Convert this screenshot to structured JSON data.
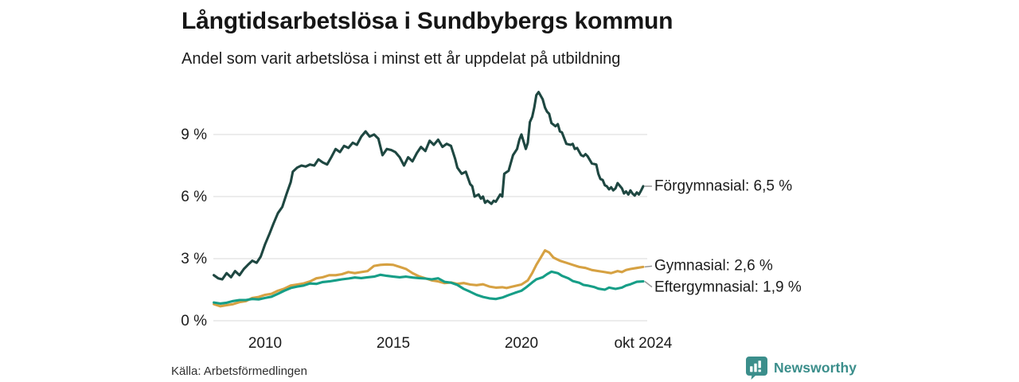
{
  "header": {
    "title": "Långtidsarbetslösa i Sundbybergs kommun",
    "subtitle": "Andel som varit arbetslösa i minst ett år uppdelat på utbildning"
  },
  "footer": {
    "source": "Källa: Arbetsförmedlingen",
    "brand": "Newsworthy",
    "brand_color": "#3b8e8b"
  },
  "chart_data": {
    "type": "line",
    "title": "Långtidsarbetslösa i Sundbybergs kommun",
    "subtitle": "Andel som varit arbetslösa i minst ett år uppdelat på utbildning",
    "grid": "horizontal-only",
    "grid_color": "#e0e0e0",
    "x_range": [
      2008.0,
      2024.75
    ],
    "ylim": [
      0,
      11.6
    ],
    "x_ticks": [
      {
        "label": "2010",
        "year": 2010
      },
      {
        "label": "2015",
        "year": 2015
      },
      {
        "label": "2020",
        "year": 2020
      },
      {
        "label": "okt 2024",
        "year": 2024.75
      }
    ],
    "y_ticks": [
      {
        "label": "0 %",
        "value": 0
      },
      {
        "label": "3 %",
        "value": 3
      },
      {
        "label": "6 %",
        "value": 6
      },
      {
        "label": "9 %",
        "value": 9
      }
    ],
    "legend_position": "right-of-line-ends",
    "connector_color": "#999999",
    "series": [
      {
        "name": "Förgymnasial",
        "end_label": "Förgymnasial: 6,5 %",
        "last_value": "6,5 %",
        "color": "#1e4741",
        "points": [
          [
            2008.0,
            2.2
          ],
          [
            2008.17,
            2.05
          ],
          [
            2008.33,
            2.0
          ],
          [
            2008.5,
            2.3
          ],
          [
            2008.67,
            2.1
          ],
          [
            2008.83,
            2.4
          ],
          [
            2009.0,
            2.2
          ],
          [
            2009.17,
            2.5
          ],
          [
            2009.33,
            2.7
          ],
          [
            2009.5,
            2.9
          ],
          [
            2009.67,
            2.8
          ],
          [
            2009.83,
            3.1
          ],
          [
            2010.0,
            3.7
          ],
          [
            2010.17,
            4.2
          ],
          [
            2010.33,
            4.7
          ],
          [
            2010.5,
            5.2
          ],
          [
            2010.67,
            5.5
          ],
          [
            2010.83,
            6.1
          ],
          [
            2011.0,
            6.7
          ],
          [
            2011.08,
            7.2
          ],
          [
            2011.25,
            7.4
          ],
          [
            2011.42,
            7.5
          ],
          [
            2011.58,
            7.45
          ],
          [
            2011.75,
            7.55
          ],
          [
            2011.92,
            7.5
          ],
          [
            2012.08,
            7.8
          ],
          [
            2012.25,
            7.65
          ],
          [
            2012.42,
            7.55
          ],
          [
            2012.58,
            7.9
          ],
          [
            2012.75,
            8.3
          ],
          [
            2012.92,
            8.15
          ],
          [
            2013.08,
            8.45
          ],
          [
            2013.25,
            8.35
          ],
          [
            2013.42,
            8.6
          ],
          [
            2013.58,
            8.5
          ],
          [
            2013.75,
            8.9
          ],
          [
            2013.92,
            9.15
          ],
          [
            2014.08,
            8.9
          ],
          [
            2014.25,
            9.0
          ],
          [
            2014.42,
            8.8
          ],
          [
            2014.58,
            8.0
          ],
          [
            2014.75,
            8.3
          ],
          [
            2014.92,
            8.25
          ],
          [
            2015.08,
            8.15
          ],
          [
            2015.25,
            7.9
          ],
          [
            2015.42,
            7.5
          ],
          [
            2015.58,
            7.9
          ],
          [
            2015.75,
            7.7
          ],
          [
            2015.92,
            8.1
          ],
          [
            2016.08,
            8.4
          ],
          [
            2016.25,
            8.2
          ],
          [
            2016.42,
            8.7
          ],
          [
            2016.58,
            8.5
          ],
          [
            2016.75,
            8.75
          ],
          [
            2016.92,
            8.4
          ],
          [
            2017.08,
            8.55
          ],
          [
            2017.25,
            8.45
          ],
          [
            2017.42,
            7.8
          ],
          [
            2017.5,
            7.4
          ],
          [
            2017.67,
            7.1
          ],
          [
            2017.83,
            7.2
          ],
          [
            2018.0,
            6.6
          ],
          [
            2018.08,
            6.5
          ],
          [
            2018.17,
            6.0
          ],
          [
            2018.33,
            6.1
          ],
          [
            2018.42,
            5.9
          ],
          [
            2018.5,
            6.0
          ],
          [
            2018.58,
            5.7
          ],
          [
            2018.67,
            5.8
          ],
          [
            2018.83,
            5.65
          ],
          [
            2018.92,
            5.8
          ],
          [
            2019.0,
            5.75
          ],
          [
            2019.17,
            6.1
          ],
          [
            2019.25,
            6.0
          ],
          [
            2019.33,
            7.1
          ],
          [
            2019.5,
            7.25
          ],
          [
            2019.67,
            8.0
          ],
          [
            2019.83,
            8.3
          ],
          [
            2019.92,
            8.75
          ],
          [
            2020.0,
            9.0
          ],
          [
            2020.17,
            8.3
          ],
          [
            2020.25,
            8.6
          ],
          [
            2020.33,
            9.6
          ],
          [
            2020.42,
            9.85
          ],
          [
            2020.5,
            10.3
          ],
          [
            2020.58,
            10.9
          ],
          [
            2020.67,
            11.05
          ],
          [
            2020.83,
            10.7
          ],
          [
            2020.92,
            10.3
          ],
          [
            2021.0,
            10.1
          ],
          [
            2021.08,
            10.0
          ],
          [
            2021.17,
            9.55
          ],
          [
            2021.33,
            9.4
          ],
          [
            2021.42,
            9.5
          ],
          [
            2021.5,
            9.15
          ],
          [
            2021.58,
            9.1
          ],
          [
            2021.75,
            8.55
          ],
          [
            2021.92,
            8.5
          ],
          [
            2022.0,
            8.55
          ],
          [
            2022.08,
            8.3
          ],
          [
            2022.17,
            8.35
          ],
          [
            2022.33,
            8.0
          ],
          [
            2022.42,
            7.95
          ],
          [
            2022.5,
            8.05
          ],
          [
            2022.58,
            7.95
          ],
          [
            2022.75,
            7.6
          ],
          [
            2022.92,
            7.55
          ],
          [
            2023.0,
            7.1
          ],
          [
            2023.08,
            6.85
          ],
          [
            2023.17,
            6.8
          ],
          [
            2023.25,
            6.55
          ],
          [
            2023.33,
            6.5
          ],
          [
            2023.42,
            6.35
          ],
          [
            2023.5,
            6.45
          ],
          [
            2023.58,
            6.3
          ],
          [
            2023.67,
            6.4
          ],
          [
            2023.75,
            6.65
          ],
          [
            2023.92,
            6.4
          ],
          [
            2024.0,
            6.15
          ],
          [
            2024.08,
            6.25
          ],
          [
            2024.17,
            6.1
          ],
          [
            2024.25,
            6.3
          ],
          [
            2024.33,
            6.15
          ],
          [
            2024.42,
            6.05
          ],
          [
            2024.5,
            6.2
          ],
          [
            2024.58,
            6.1
          ],
          [
            2024.67,
            6.3
          ],
          [
            2024.75,
            6.5
          ]
        ]
      },
      {
        "name": "Gymnasial",
        "end_label": "Gymnasial: 2,6 %",
        "last_value": "2,6 %",
        "color": "#d6a142",
        "points": [
          [
            2008.0,
            0.8
          ],
          [
            2008.25,
            0.7
          ],
          [
            2008.5,
            0.75
          ],
          [
            2008.75,
            0.8
          ],
          [
            2009.0,
            0.9
          ],
          [
            2009.25,
            0.95
          ],
          [
            2009.5,
            1.1
          ],
          [
            2009.75,
            1.15
          ],
          [
            2010.0,
            1.25
          ],
          [
            2010.25,
            1.3
          ],
          [
            2010.5,
            1.45
          ],
          [
            2010.75,
            1.55
          ],
          [
            2011.0,
            1.7
          ],
          [
            2011.25,
            1.75
          ],
          [
            2011.5,
            1.8
          ],
          [
            2011.75,
            1.9
          ],
          [
            2012.0,
            2.05
          ],
          [
            2012.25,
            2.1
          ],
          [
            2012.5,
            2.2
          ],
          [
            2012.75,
            2.2
          ],
          [
            2013.0,
            2.25
          ],
          [
            2013.25,
            2.35
          ],
          [
            2013.5,
            2.3
          ],
          [
            2013.75,
            2.35
          ],
          [
            2014.0,
            2.4
          ],
          [
            2014.25,
            2.65
          ],
          [
            2014.5,
            2.7
          ],
          [
            2014.75,
            2.72
          ],
          [
            2015.0,
            2.7
          ],
          [
            2015.25,
            2.6
          ],
          [
            2015.5,
            2.5
          ],
          [
            2015.75,
            2.3
          ],
          [
            2016.0,
            2.15
          ],
          [
            2016.25,
            2.05
          ],
          [
            2016.5,
            1.95
          ],
          [
            2016.75,
            1.9
          ],
          [
            2017.0,
            1.82
          ],
          [
            2017.25,
            1.85
          ],
          [
            2017.5,
            1.78
          ],
          [
            2017.75,
            1.82
          ],
          [
            2018.0,
            1.75
          ],
          [
            2018.25,
            1.72
          ],
          [
            2018.5,
            1.76
          ],
          [
            2018.75,
            1.65
          ],
          [
            2019.0,
            1.6
          ],
          [
            2019.25,
            1.62
          ],
          [
            2019.42,
            1.58
          ],
          [
            2019.58,
            1.63
          ],
          [
            2019.83,
            1.7
          ],
          [
            2020.0,
            1.75
          ],
          [
            2020.25,
            1.95
          ],
          [
            2020.42,
            2.3
          ],
          [
            2020.58,
            2.7
          ],
          [
            2020.75,
            3.05
          ],
          [
            2020.92,
            3.4
          ],
          [
            2021.08,
            3.3
          ],
          [
            2021.25,
            3.05
          ],
          [
            2021.5,
            2.9
          ],
          [
            2021.75,
            2.8
          ],
          [
            2022.0,
            2.7
          ],
          [
            2022.25,
            2.6
          ],
          [
            2022.5,
            2.55
          ],
          [
            2022.75,
            2.45
          ],
          [
            2023.0,
            2.4
          ],
          [
            2023.25,
            2.35
          ],
          [
            2023.5,
            2.3
          ],
          [
            2023.75,
            2.4
          ],
          [
            2023.92,
            2.35
          ],
          [
            2024.08,
            2.45
          ],
          [
            2024.25,
            2.5
          ],
          [
            2024.5,
            2.55
          ],
          [
            2024.75,
            2.6
          ]
        ]
      },
      {
        "name": "Eftergymnasial",
        "end_label": "Eftergymnasial: 1,9 %",
        "last_value": "1,9 %",
        "color": "#169e87",
        "points": [
          [
            2008.0,
            0.88
          ],
          [
            2008.25,
            0.83
          ],
          [
            2008.5,
            0.87
          ],
          [
            2008.75,
            0.95
          ],
          [
            2009.0,
            1.0
          ],
          [
            2009.25,
            1.0
          ],
          [
            2009.5,
            1.05
          ],
          [
            2009.75,
            1.03
          ],
          [
            2010.0,
            1.1
          ],
          [
            2010.25,
            1.16
          ],
          [
            2010.5,
            1.3
          ],
          [
            2010.75,
            1.45
          ],
          [
            2011.0,
            1.58
          ],
          [
            2011.25,
            1.65
          ],
          [
            2011.5,
            1.7
          ],
          [
            2011.75,
            1.8
          ],
          [
            2012.0,
            1.78
          ],
          [
            2012.25,
            1.87
          ],
          [
            2012.5,
            1.9
          ],
          [
            2012.75,
            1.95
          ],
          [
            2013.0,
            2.0
          ],
          [
            2013.25,
            2.04
          ],
          [
            2013.5,
            2.09
          ],
          [
            2013.75,
            2.06
          ],
          [
            2014.0,
            2.1
          ],
          [
            2014.25,
            2.13
          ],
          [
            2014.5,
            2.22
          ],
          [
            2014.75,
            2.17
          ],
          [
            2015.0,
            2.13
          ],
          [
            2015.25,
            2.1
          ],
          [
            2015.5,
            2.13
          ],
          [
            2015.75,
            2.09
          ],
          [
            2016.0,
            2.06
          ],
          [
            2016.25,
            2.04
          ],
          [
            2016.5,
            2.0
          ],
          [
            2016.75,
            2.05
          ],
          [
            2017.0,
            1.88
          ],
          [
            2017.25,
            1.84
          ],
          [
            2017.5,
            1.73
          ],
          [
            2017.75,
            1.54
          ],
          [
            2018.0,
            1.4
          ],
          [
            2018.25,
            1.25
          ],
          [
            2018.5,
            1.15
          ],
          [
            2018.75,
            1.08
          ],
          [
            2019.0,
            1.05
          ],
          [
            2019.25,
            1.12
          ],
          [
            2019.5,
            1.24
          ],
          [
            2019.75,
            1.35
          ],
          [
            2020.0,
            1.45
          ],
          [
            2020.17,
            1.6
          ],
          [
            2020.42,
            1.85
          ],
          [
            2020.58,
            2.0
          ],
          [
            2020.83,
            2.1
          ],
          [
            2021.0,
            2.25
          ],
          [
            2021.17,
            2.37
          ],
          [
            2021.42,
            2.3
          ],
          [
            2021.58,
            2.17
          ],
          [
            2021.83,
            2.05
          ],
          [
            2022.0,
            1.92
          ],
          [
            2022.25,
            1.84
          ],
          [
            2022.42,
            1.73
          ],
          [
            2022.58,
            1.7
          ],
          [
            2022.83,
            1.63
          ],
          [
            2023.0,
            1.55
          ],
          [
            2023.25,
            1.5
          ],
          [
            2023.42,
            1.6
          ],
          [
            2023.67,
            1.54
          ],
          [
            2023.92,
            1.6
          ],
          [
            2024.08,
            1.7
          ],
          [
            2024.25,
            1.76
          ],
          [
            2024.5,
            1.88
          ],
          [
            2024.75,
            1.9
          ]
        ]
      }
    ]
  }
}
